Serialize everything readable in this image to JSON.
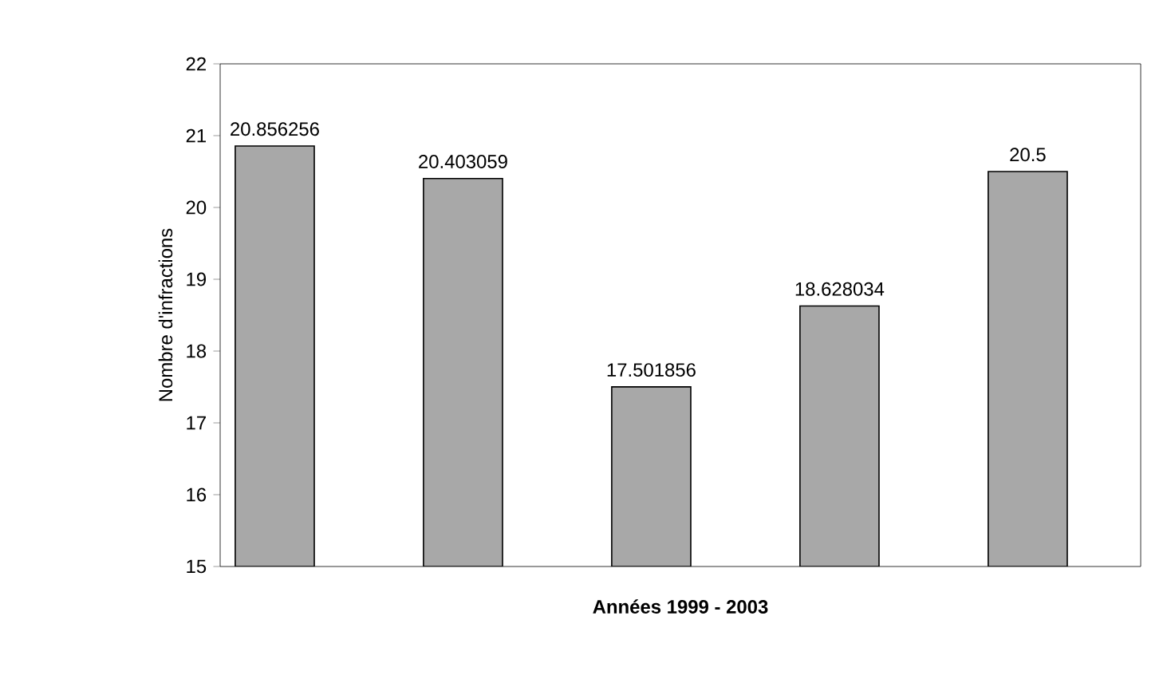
{
  "chart_data": {
    "type": "bar",
    "xlabel": "Années 1999 - 2003",
    "ylabel": "Nombre d'infractions",
    "categories": [
      null,
      null,
      null,
      null,
      null
    ],
    "values": [
      20.856256,
      20.403059,
      17.501856,
      18.628034,
      20.5
    ],
    "color": "#a8a8a8",
    "ylim": [
      15,
      22
    ],
    "yticks": [
      15,
      16,
      17,
      18,
      19,
      20,
      21,
      22
    ],
    "data_labels": true
  }
}
